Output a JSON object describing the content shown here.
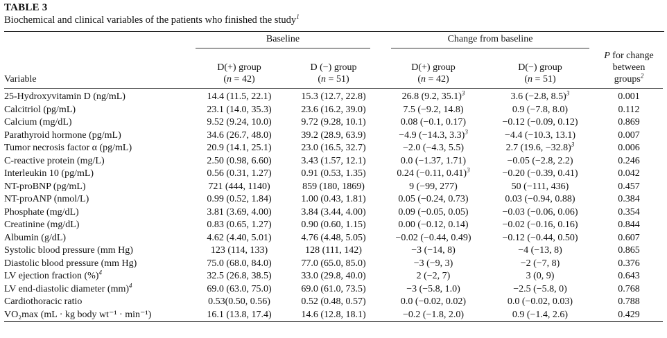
{
  "table": {
    "label": "TABLE 3",
    "caption": "Biochemical and clinical variables of the patients who finished the study",
    "caption_note": "1",
    "groups": {
      "baseline": "Baseline",
      "change": "Change from baseline"
    },
    "columns": {
      "variable": "Variable",
      "d_plus": "D(+) group",
      "d_minus": "D (−) group",
      "d_minus_change": "D(−) group",
      "n_plus": "42",
      "n_minus": "51",
      "p_line1": "for change",
      "p_letter": "P",
      "p_line2": "between",
      "p_line3": "groups",
      "p_note": "2"
    },
    "rows": [
      {
        "variable": "25-Hydroxyvitamin D (ng/mL)",
        "b_plus": "14.4 (11.5, 22.1)",
        "b_minus": "15.3 (12.7, 22.8)",
        "c_plus": "26.8 (9.2, 35.1)",
        "c_plus_note": "3",
        "c_minus": "3.6 (−2.8, 8.5)",
        "c_minus_note": "3",
        "p": "0.001"
      },
      {
        "variable": "Calcitriol (pg/mL)",
        "b_plus": "23.1 (14.0, 35.3)",
        "b_minus": "23.6 (16.2, 39.0)",
        "c_plus": "7.5 (−9.2, 14.8)",
        "c_plus_note": "",
        "c_minus": "0.9 (−7.8, 8.0)",
        "c_minus_note": "",
        "p": "0.112"
      },
      {
        "variable": "Calcium (mg/dL)",
        "b_plus": "9.52 (9.24, 10.0)",
        "b_minus": "9.72 (9.28, 10.1)",
        "c_plus": "0.08 (−0.1, 0.17)",
        "c_plus_note": "",
        "c_minus": "−0.12 (−0.09, 0.12)",
        "c_minus_note": "",
        "p": "0.869"
      },
      {
        "variable": "Parathyroid hormone (pg/mL)",
        "b_plus": "34.6 (26.7, 48.0)",
        "b_minus": "39.2 (28.9, 63.9)",
        "c_plus": "−4.9 (−14.3, 3.3)",
        "c_plus_note": "3",
        "c_minus": "−4.4 (−10.3, 13.1)",
        "c_minus_note": "",
        "p": "0.007"
      },
      {
        "variable": "Tumor necrosis factor α (pg/mL)",
        "b_plus": "20.9 (14.1, 25.1)",
        "b_minus": "23.0 (16.5, 32.7)",
        "c_plus": "−2.0 (−4.3, 5.5)",
        "c_plus_note": "",
        "c_minus": "2.7 (19.6, −32.8)",
        "c_minus_note": "3",
        "p": "0.006"
      },
      {
        "variable": "C-reactive protein (mg/L)",
        "b_plus": "2.50 (0.98, 6.60)",
        "b_minus": "3.43 (1.57, 12.1)",
        "c_plus": "0.0 (−1.37, 1.71)",
        "c_plus_note": "",
        "c_minus": "−0.05 (−2.8, 2.2)",
        "c_minus_note": "",
        "p": "0.246"
      },
      {
        "variable": "Interleukin 10 (pg/mL)",
        "b_plus": "0.56 (0.31, 1.27)",
        "b_minus": "0.91 (0.53, 1.35)",
        "c_plus": "0.24 (−0.11, 0.41)",
        "c_plus_note": "3",
        "c_minus": "−0.20 (−0.39, 0.41)",
        "c_minus_note": "",
        "p": "0.042"
      },
      {
        "variable": "NT-proBNP (pg/mL)",
        "b_plus": "721 (444, 1140)",
        "b_minus": "859 (180, 1869)",
        "c_plus": "9 (−99, 277)",
        "c_plus_note": "",
        "c_minus": "50 (−111, 436)",
        "c_minus_note": "",
        "p": "0.457"
      },
      {
        "variable": "NT-proANP (nmol/L)",
        "b_plus": "0.99 (0.52, 1.84)",
        "b_minus": "1.00 (0.43, 1.81)",
        "c_plus": "0.05 (−0.24, 0.73)",
        "c_plus_note": "",
        "c_minus": "0.03 (−0.94, 0.88)",
        "c_minus_note": "",
        "p": "0.384"
      },
      {
        "variable": "Phosphate (mg/dL)",
        "b_plus": "3.81 (3.69, 4.00)",
        "b_minus": "3.84 (3.44, 4.00)",
        "c_plus": "0.09 (−0.05, 0.05)",
        "c_plus_note": "",
        "c_minus": "−0.03 (−0.06, 0.06)",
        "c_minus_note": "",
        "p": "0.354"
      },
      {
        "variable": "Creatinine (mg/dL)",
        "b_plus": "0.83 (0.65, 1.27)",
        "b_minus": "0.90 (0.60, 1.15)",
        "c_plus": "0.00 (−0.12, 0.14)",
        "c_plus_note": "",
        "c_minus": "−0.02 (−0.16, 0.16)",
        "c_minus_note": "",
        "p": "0.844"
      },
      {
        "variable": "Albumin (g/dL)",
        "b_plus": "4.62 (4.40, 5.01)",
        "b_minus": "4.76 (4.48, 5.05)",
        "c_plus": "−0.02 (−0.44, 0.49)",
        "c_plus_note": "",
        "c_minus": "−0.12 (−0.44, 0.50)",
        "c_minus_note": "",
        "p": "0.607"
      },
      {
        "variable": "Systolic blood pressure (mm Hg)",
        "b_plus": "123 (114, 133)",
        "b_minus": "128 (111, 142)",
        "c_plus": "−3 (−14, 8)",
        "c_plus_note": "",
        "c_minus": "−4 (−13, 8)",
        "c_minus_note": "",
        "p": "0.865"
      },
      {
        "variable": "Diastolic blood pressure (mm Hg)",
        "b_plus": "75.0 (68.0, 84.0)",
        "b_minus": "77.0 (65.0, 85.0)",
        "c_plus": "−3 (−9, 3)",
        "c_plus_note": "",
        "c_minus": "−2 (−7, 8)",
        "c_minus_note": "",
        "p": "0.376"
      },
      {
        "variable": "LV ejection fraction (%)",
        "variable_note": "4",
        "b_plus": "32.5 (26.8, 38.5)",
        "b_minus": "33.0 (29.8, 40.0)",
        "c_plus": "2 (−2, 7)",
        "c_plus_note": "",
        "c_minus": "3 (0, 9)",
        "c_minus_note": "",
        "p": "0.643"
      },
      {
        "variable": "LV end-diastolic diameter (mm)",
        "variable_note": "4",
        "b_plus": "69.0 (63.0, 75.0)",
        "b_minus": "69.0 (61.0, 73.5)",
        "c_plus": "−3 (−5.8, 1.0)",
        "c_plus_note": "",
        "c_minus": "−2.5 (−5.8, 0)",
        "c_minus_note": "",
        "p": "0.768"
      },
      {
        "variable": "Cardiothoracic ratio",
        "b_plus": "0.53(0.50, 0.56)",
        "b_minus": "0.52 (0.48, 0.57)",
        "c_plus": "0.0 (−0.02, 0.02)",
        "c_plus_note": "",
        "c_minus": "0.0 (−0.02, 0.03)",
        "c_minus_note": "",
        "p": "0.788"
      },
      {
        "variable": "VO₂max (mL · kg body wt⁻¹ · min⁻¹)",
        "b_plus": "16.1 (13.8, 17.4)",
        "b_minus": "14.6 (12.8, 18.1)",
        "c_plus": "−0.2 (−1.8, 2.0)",
        "c_plus_note": "",
        "c_minus": "0.9 (−1.4, 2.6)",
        "c_minus_note": "",
        "p": "0.429"
      }
    ]
  }
}
